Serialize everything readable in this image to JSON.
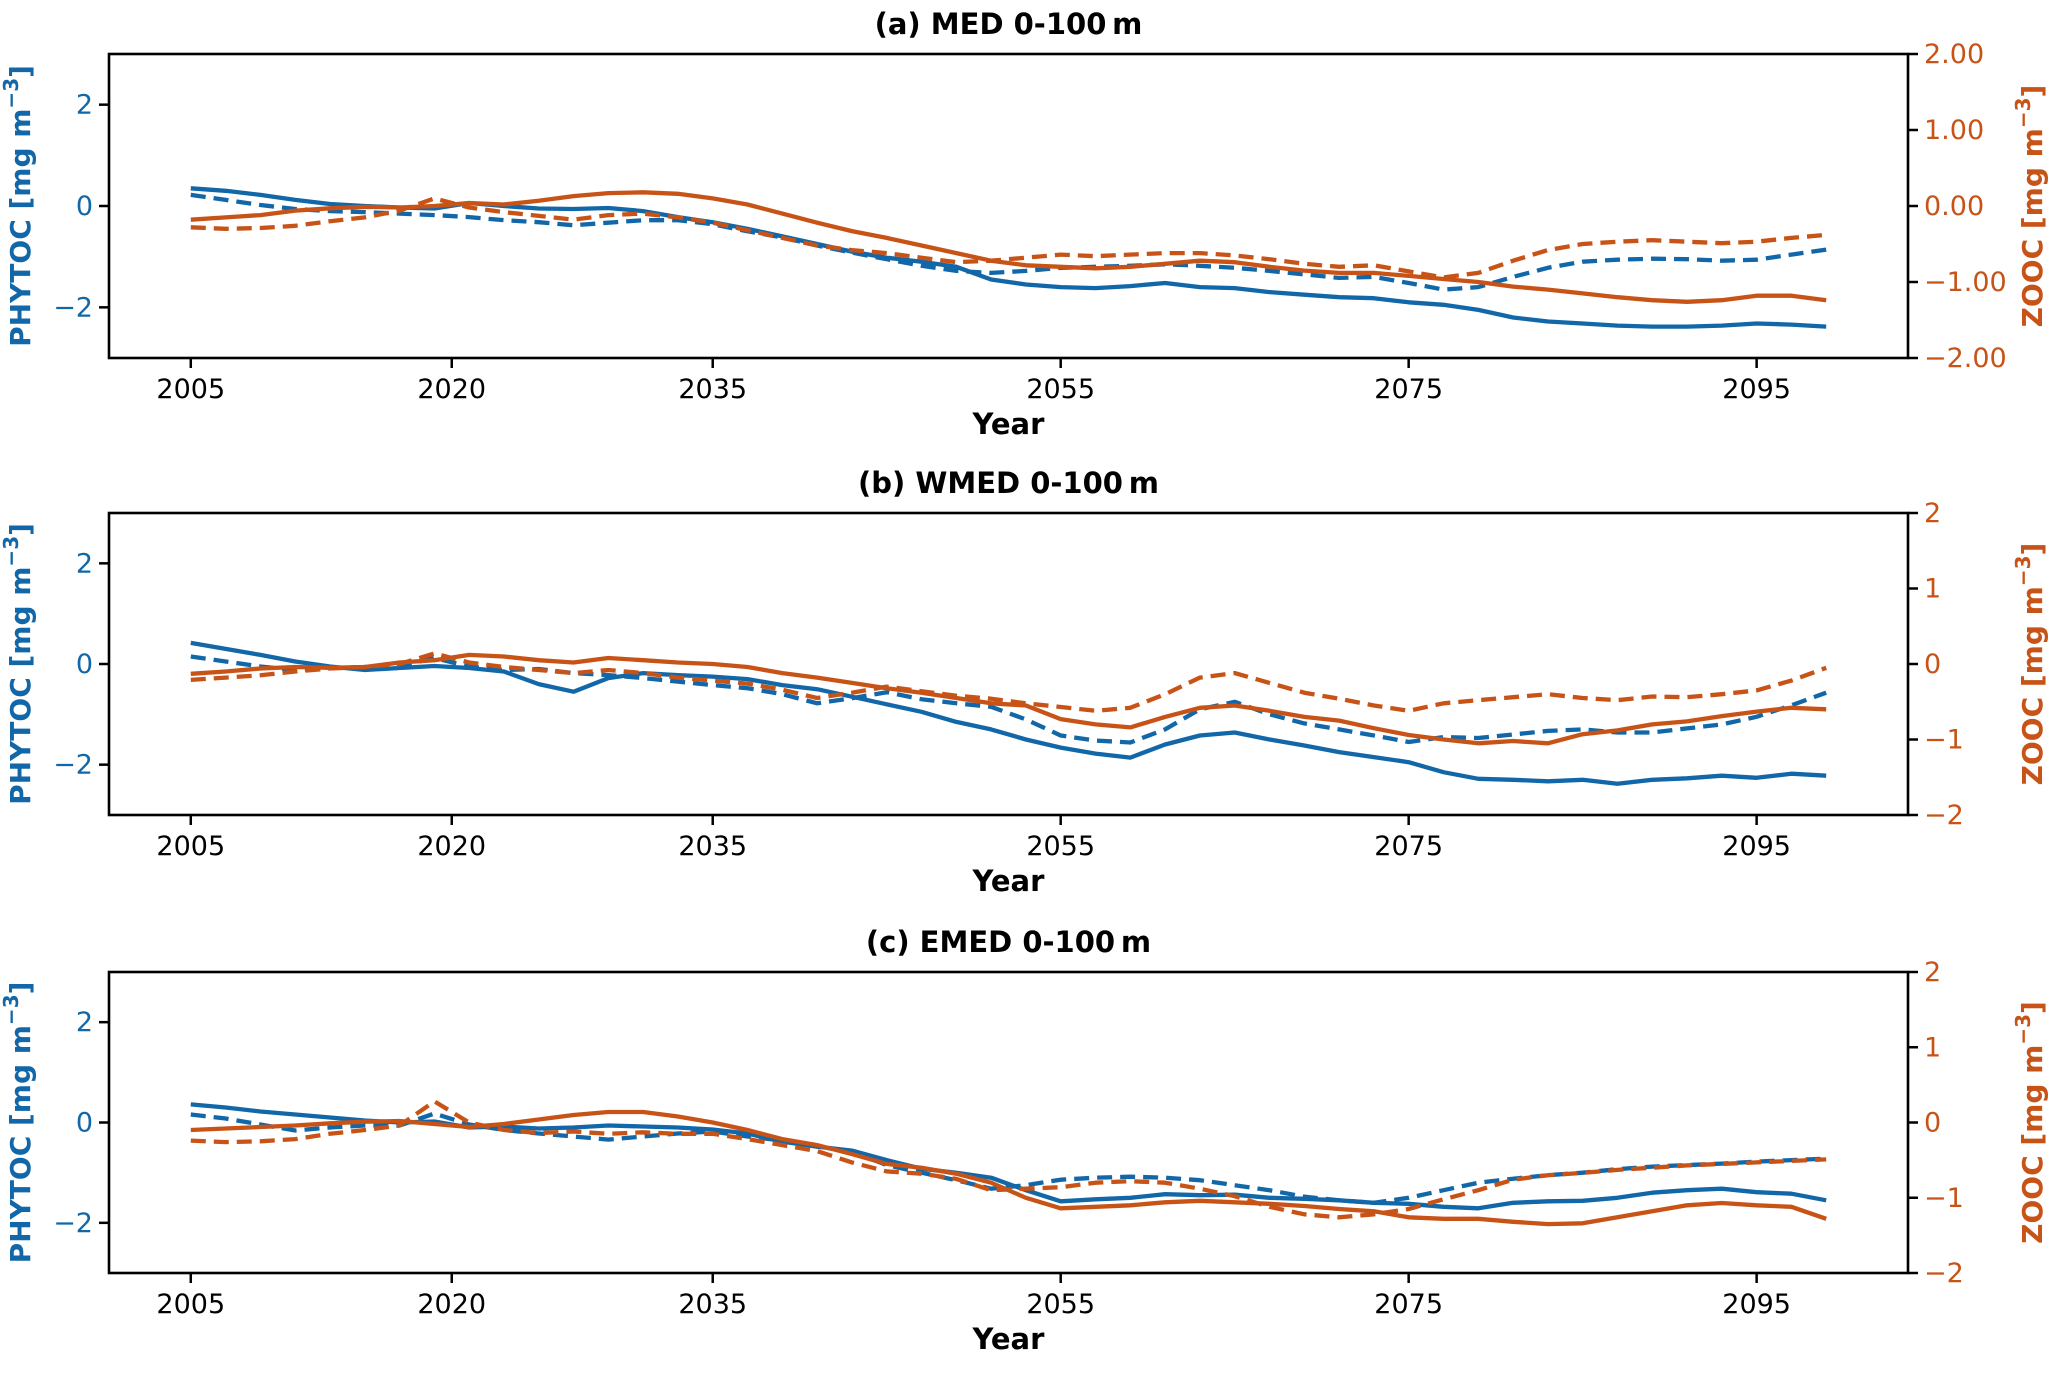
{
  "figure": {
    "background": "#ffffff"
  },
  "colors": {
    "phytoc": "#1267a8",
    "zooc": "#c85317",
    "axis": "#000000"
  },
  "x_axis": {
    "label": "Year"
  },
  "left_axis_label": {
    "pre": "PHYTOC [mg m",
    "sup": "−3",
    "post": "]"
  },
  "right_axis_label": {
    "pre": "ZOOC [mg m",
    "sup": "−3",
    "post": "]"
  },
  "chart_data": [
    {
      "id": "a",
      "type": "line",
      "title": "(a) MED 0-100 m",
      "xlabel": "Year",
      "xlim": [
        2000.3,
        2103.7
      ],
      "grid": false,
      "legend": "none",
      "x_ticks": [
        2005,
        2020,
        2035,
        2055,
        2075,
        2095
      ],
      "x_tick_labels": [
        "2005",
        "2020",
        "2035",
        "2055",
        "2075",
        "2095"
      ],
      "left_axis": {
        "ylim": [
          -3,
          3
        ],
        "ticks": [
          2,
          0,
          -2
        ],
        "tick_labels": [
          "2",
          "0",
          "−2"
        ]
      },
      "right_axis": {
        "ylim": [
          -2,
          2
        ],
        "ticks": [
          2,
          1,
          0,
          -1,
          -2
        ],
        "tick_labels": [
          "2.00",
          "1.00",
          "0.00",
          "−1.00",
          "−2.00"
        ]
      },
      "x": [
        2005,
        2007,
        2009,
        2011,
        2013,
        2015,
        2017,
        2019,
        2021,
        2023,
        2025,
        2027,
        2029,
        2031,
        2033,
        2035,
        2037,
        2039,
        2041,
        2043,
        2045,
        2047,
        2049,
        2051,
        2053,
        2055,
        2057,
        2059,
        2061,
        2063,
        2065,
        2067,
        2069,
        2071,
        2073,
        2075,
        2077,
        2079,
        2081,
        2083,
        2085,
        2087,
        2089,
        2091,
        2093,
        2095,
        2097,
        2099
      ],
      "series": [
        {
          "name": "PHYTOC solid",
          "variable": "PHYTOC",
          "style": "solid",
          "axis": "left",
          "values": [
            0.35,
            0.3,
            0.22,
            0.12,
            0.04,
            0.0,
            -0.03,
            -0.05,
            0.06,
            0.0,
            -0.05,
            -0.06,
            -0.04,
            -0.1,
            -0.22,
            -0.32,
            -0.45,
            -0.6,
            -0.75,
            -0.9,
            -1.02,
            -1.1,
            -1.2,
            -1.45,
            -1.55,
            -1.6,
            -1.62,
            -1.58,
            -1.52,
            -1.6,
            -1.62,
            -1.7,
            -1.75,
            -1.8,
            -1.82,
            -1.9,
            -1.95,
            -2.05,
            -2.2,
            -2.28,
            -2.32,
            -2.36,
            -2.38,
            -2.38,
            -2.36,
            -2.32,
            -2.34,
            -2.38
          ]
        },
        {
          "name": "PHYTOC dashed",
          "variable": "PHYTOC",
          "style": "dashed",
          "axis": "left",
          "values": [
            0.22,
            0.12,
            0.02,
            -0.06,
            -0.1,
            -0.12,
            -0.15,
            -0.18,
            -0.22,
            -0.28,
            -0.32,
            -0.38,
            -0.33,
            -0.28,
            -0.28,
            -0.36,
            -0.5,
            -0.62,
            -0.78,
            -0.92,
            -1.05,
            -1.18,
            -1.28,
            -1.32,
            -1.28,
            -1.22,
            -1.2,
            -1.18,
            -1.15,
            -1.18,
            -1.22,
            -1.28,
            -1.35,
            -1.42,
            -1.4,
            -1.52,
            -1.65,
            -1.6,
            -1.4,
            -1.22,
            -1.1,
            -1.06,
            -1.04,
            -1.05,
            -1.08,
            -1.06,
            -0.96,
            -0.86
          ]
        },
        {
          "name": "ZOOC solid",
          "variable": "ZOOC",
          "style": "solid",
          "axis": "right",
          "values": [
            -0.18,
            -0.15,
            -0.12,
            -0.06,
            -0.03,
            -0.01,
            -0.02,
            0.0,
            0.04,
            0.02,
            0.07,
            0.13,
            0.17,
            0.18,
            0.16,
            0.1,
            0.02,
            -0.1,
            -0.22,
            -0.33,
            -0.42,
            -0.52,
            -0.62,
            -0.72,
            -0.78,
            -0.8,
            -0.82,
            -0.8,
            -0.76,
            -0.72,
            -0.74,
            -0.8,
            -0.85,
            -0.88,
            -0.88,
            -0.92,
            -0.96,
            -1.0,
            -1.06,
            -1.1,
            -1.15,
            -1.2,
            -1.24,
            -1.26,
            -1.24,
            -1.18,
            -1.18,
            -1.24
          ]
        },
        {
          "name": "ZOOC dashed",
          "variable": "ZOOC",
          "style": "dashed",
          "axis": "right",
          "values": [
            -0.28,
            -0.3,
            -0.29,
            -0.26,
            -0.2,
            -0.15,
            -0.06,
            0.1,
            -0.02,
            -0.08,
            -0.13,
            -0.18,
            -0.12,
            -0.1,
            -0.15,
            -0.22,
            -0.32,
            -0.42,
            -0.52,
            -0.58,
            -0.62,
            -0.68,
            -0.74,
            -0.72,
            -0.68,
            -0.64,
            -0.66,
            -0.64,
            -0.62,
            -0.62,
            -0.65,
            -0.7,
            -0.76,
            -0.8,
            -0.78,
            -0.86,
            -0.94,
            -0.88,
            -0.72,
            -0.58,
            -0.5,
            -0.47,
            -0.45,
            -0.47,
            -0.49,
            -0.47,
            -0.42,
            -0.38
          ]
        }
      ]
    },
    {
      "id": "b",
      "type": "line",
      "title": "(b) WMED 0-100 m",
      "xlabel": "Year",
      "xlim": [
        2000.3,
        2103.7
      ],
      "grid": false,
      "legend": "none",
      "x_ticks": [
        2005,
        2020,
        2035,
        2055,
        2075,
        2095
      ],
      "x_tick_labels": [
        "2005",
        "2020",
        "2035",
        "2055",
        "2075",
        "2095"
      ],
      "left_axis": {
        "ylim": [
          -3,
          3
        ],
        "ticks": [
          2,
          0,
          -2
        ],
        "tick_labels": [
          "2",
          "0",
          "−2"
        ]
      },
      "right_axis": {
        "ylim": [
          -2,
          2
        ],
        "ticks": [
          2,
          1,
          0,
          -1,
          -2
        ],
        "tick_labels": [
          "2",
          "1",
          "0",
          "−1",
          "−2"
        ]
      },
      "x": [
        2005,
        2007,
        2009,
        2011,
        2013,
        2015,
        2017,
        2019,
        2021,
        2023,
        2025,
        2027,
        2029,
        2031,
        2033,
        2035,
        2037,
        2039,
        2041,
        2043,
        2045,
        2047,
        2049,
        2051,
        2053,
        2055,
        2057,
        2059,
        2061,
        2063,
        2065,
        2067,
        2069,
        2071,
        2073,
        2075,
        2077,
        2079,
        2081,
        2083,
        2085,
        2087,
        2089,
        2091,
        2093,
        2095,
        2097,
        2099
      ],
      "series": [
        {
          "name": "PHYTOC solid",
          "variable": "PHYTOC",
          "style": "solid",
          "axis": "left",
          "values": [
            0.42,
            0.3,
            0.18,
            0.05,
            -0.05,
            -0.12,
            -0.08,
            -0.04,
            -0.08,
            -0.15,
            -0.4,
            -0.55,
            -0.28,
            -0.18,
            -0.22,
            -0.25,
            -0.3,
            -0.42,
            -0.5,
            -0.65,
            -0.8,
            -0.95,
            -1.15,
            -1.3,
            -1.5,
            -1.66,
            -1.78,
            -1.86,
            -1.6,
            -1.42,
            -1.36,
            -1.5,
            -1.62,
            -1.75,
            -1.85,
            -1.95,
            -2.15,
            -2.28,
            -2.3,
            -2.33,
            -2.3,
            -2.38,
            -2.3,
            -2.27,
            -2.22,
            -2.26,
            -2.18,
            -2.22
          ]
        },
        {
          "name": "PHYTOC dashed",
          "variable": "PHYTOC",
          "style": "dashed",
          "axis": "left",
          "values": [
            0.15,
            0.05,
            -0.05,
            -0.12,
            -0.08,
            -0.06,
            -0.04,
            0.12,
            -0.05,
            -0.12,
            -0.1,
            -0.18,
            -0.22,
            -0.28,
            -0.35,
            -0.42,
            -0.48,
            -0.6,
            -0.78,
            -0.68,
            -0.56,
            -0.7,
            -0.78,
            -0.85,
            -1.1,
            -1.42,
            -1.52,
            -1.56,
            -1.3,
            -0.9,
            -0.75,
            -1.0,
            -1.18,
            -1.3,
            -1.42,
            -1.55,
            -1.45,
            -1.47,
            -1.4,
            -1.33,
            -1.3,
            -1.36,
            -1.36,
            -1.28,
            -1.2,
            -1.05,
            -0.82,
            -0.57
          ]
        },
        {
          "name": "ZOOC solid",
          "variable": "ZOOC",
          "style": "solid",
          "axis": "right",
          "values": [
            -0.13,
            -0.1,
            -0.06,
            -0.04,
            -0.05,
            -0.04,
            0.02,
            0.05,
            0.12,
            0.1,
            0.05,
            0.02,
            0.08,
            0.05,
            0.02,
            0.0,
            -0.04,
            -0.12,
            -0.18,
            -0.25,
            -0.32,
            -0.38,
            -0.45,
            -0.52,
            -0.55,
            -0.73,
            -0.8,
            -0.84,
            -0.7,
            -0.58,
            -0.55,
            -0.62,
            -0.7,
            -0.75,
            -0.85,
            -0.94,
            -1.0,
            -1.05,
            -1.02,
            -1.05,
            -0.93,
            -0.88,
            -0.8,
            -0.76,
            -0.69,
            -0.63,
            -0.58,
            -0.6
          ]
        },
        {
          "name": "ZOOC dashed",
          "variable": "ZOOC",
          "style": "dashed",
          "axis": "right",
          "values": [
            -0.21,
            -0.18,
            -0.15,
            -0.1,
            -0.06,
            -0.04,
            0.0,
            0.14,
            0.02,
            -0.04,
            -0.08,
            -0.12,
            -0.08,
            -0.12,
            -0.18,
            -0.22,
            -0.26,
            -0.34,
            -0.45,
            -0.38,
            -0.3,
            -0.36,
            -0.42,
            -0.46,
            -0.52,
            -0.57,
            -0.62,
            -0.58,
            -0.4,
            -0.18,
            -0.12,
            -0.25,
            -0.38,
            -0.46,
            -0.55,
            -0.62,
            -0.52,
            -0.48,
            -0.44,
            -0.4,
            -0.45,
            -0.48,
            -0.43,
            -0.44,
            -0.4,
            -0.35,
            -0.22,
            -0.05
          ]
        }
      ]
    },
    {
      "id": "c",
      "type": "line",
      "title": "(c) EMED 0-100 m",
      "xlabel": "Year",
      "xlim": [
        2000.3,
        2103.7
      ],
      "grid": false,
      "legend": "none",
      "x_ticks": [
        2005,
        2020,
        2035,
        2055,
        2075,
        2095
      ],
      "x_tick_labels": [
        "2005",
        "2020",
        "2035",
        "2055",
        "2075",
        "2095"
      ],
      "left_axis": {
        "ylim": [
          -3,
          3
        ],
        "ticks": [
          2,
          0,
          -2
        ],
        "tick_labels": [
          "2",
          "0",
          "−2"
        ]
      },
      "right_axis": {
        "ylim": [
          -2,
          2
        ],
        "ticks": [
          2,
          1,
          0,
          -1,
          -2
        ],
        "tick_labels": [
          "2",
          "1",
          "0",
          "−1",
          "−2"
        ]
      },
      "x": [
        2005,
        2007,
        2009,
        2011,
        2013,
        2015,
        2017,
        2019,
        2021,
        2023,
        2025,
        2027,
        2029,
        2031,
        2033,
        2035,
        2037,
        2039,
        2041,
        2043,
        2045,
        2047,
        2049,
        2051,
        2053,
        2055,
        2057,
        2059,
        2061,
        2063,
        2065,
        2067,
        2069,
        2071,
        2073,
        2075,
        2077,
        2079,
        2081,
        2083,
        2085,
        2087,
        2089,
        2091,
        2093,
        2095,
        2097,
        2099
      ],
      "series": [
        {
          "name": "PHYTOC solid",
          "variable": "PHYTOC",
          "style": "solid",
          "axis": "left",
          "values": [
            0.36,
            0.3,
            0.22,
            0.16,
            0.1,
            0.04,
            0.0,
            0.02,
            -0.1,
            -0.08,
            -0.12,
            -0.1,
            -0.06,
            -0.08,
            -0.1,
            -0.14,
            -0.22,
            -0.38,
            -0.48,
            -0.56,
            -0.75,
            -0.92,
            -1.0,
            -1.1,
            -1.35,
            -1.57,
            -1.53,
            -1.5,
            -1.43,
            -1.45,
            -1.44,
            -1.5,
            -1.52,
            -1.55,
            -1.6,
            -1.62,
            -1.68,
            -1.71,
            -1.6,
            -1.57,
            -1.56,
            -1.5,
            -1.4,
            -1.35,
            -1.32,
            -1.39,
            -1.42,
            -1.55
          ]
        },
        {
          "name": "PHYTOC dashed",
          "variable": "PHYTOC",
          "style": "dashed",
          "axis": "left",
          "values": [
            0.16,
            0.08,
            -0.04,
            -0.16,
            -0.1,
            -0.06,
            -0.06,
            0.18,
            -0.04,
            -0.15,
            -0.22,
            -0.28,
            -0.34,
            -0.28,
            -0.22,
            -0.18,
            -0.28,
            -0.36,
            -0.48,
            -0.58,
            -0.85,
            -1.0,
            -1.15,
            -1.32,
            -1.25,
            -1.14,
            -1.1,
            -1.08,
            -1.1,
            -1.15,
            -1.25,
            -1.35,
            -1.48,
            -1.55,
            -1.6,
            -1.5,
            -1.35,
            -1.2,
            -1.12,
            -1.05,
            -1.0,
            -0.93,
            -0.88,
            -0.85,
            -0.82,
            -0.78,
            -0.75,
            -0.72
          ]
        },
        {
          "name": "ZOOC solid",
          "variable": "ZOOC",
          "style": "solid",
          "axis": "right",
          "values": [
            -0.1,
            -0.08,
            -0.06,
            -0.04,
            -0.01,
            0.01,
            0.02,
            -0.02,
            -0.06,
            -0.02,
            0.04,
            0.1,
            0.14,
            0.14,
            0.08,
            0.0,
            -0.1,
            -0.22,
            -0.3,
            -0.42,
            -0.55,
            -0.6,
            -0.68,
            -0.8,
            -1.0,
            -1.14,
            -1.12,
            -1.1,
            -1.06,
            -1.04,
            -1.06,
            -1.08,
            -1.11,
            -1.15,
            -1.18,
            -1.26,
            -1.28,
            -1.28,
            -1.32,
            -1.35,
            -1.34,
            -1.26,
            -1.18,
            -1.1,
            -1.07,
            -1.1,
            -1.12,
            -1.28
          ]
        },
        {
          "name": "ZOOC dashed",
          "variable": "ZOOC",
          "style": "dashed",
          "axis": "right",
          "values": [
            -0.24,
            -0.26,
            -0.25,
            -0.22,
            -0.15,
            -0.1,
            -0.04,
            0.28,
            0.0,
            -0.1,
            -0.14,
            -0.12,
            -0.15,
            -0.13,
            -0.15,
            -0.15,
            -0.22,
            -0.3,
            -0.38,
            -0.53,
            -0.65,
            -0.68,
            -0.75,
            -0.9,
            -0.88,
            -0.86,
            -0.8,
            -0.78,
            -0.8,
            -0.88,
            -0.98,
            -1.12,
            -1.22,
            -1.26,
            -1.22,
            -1.15,
            -1.02,
            -0.9,
            -0.76,
            -0.7,
            -0.67,
            -0.63,
            -0.6,
            -0.57,
            -0.55,
            -0.53,
            -0.51,
            -0.49
          ]
        }
      ]
    }
  ]
}
